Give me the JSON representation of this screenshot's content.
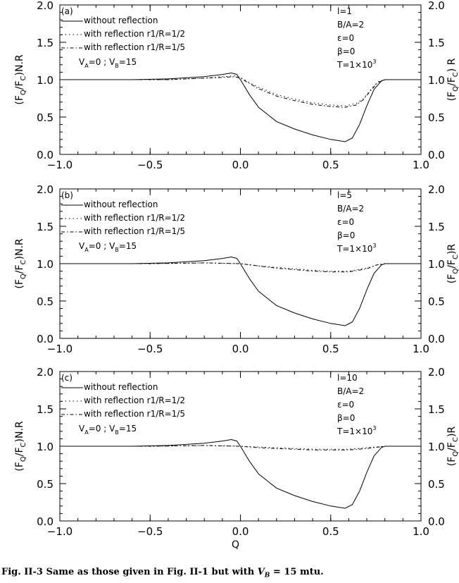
{
  "colors": {
    "line": "#000000",
    "background": "#ffffff"
  },
  "chart_data": [
    {
      "type": "line",
      "panel_label": "(a)",
      "left_ylabel": "(F_Q/F_C)N.R",
      "right_ylabel": "(F_Q/F_C) R",
      "xlabel": "",
      "xlim": [
        -1.0,
        1.0
      ],
      "ylim": [
        0.0,
        2.0
      ],
      "xticks": [
        "−1.0",
        "−0.5",
        "0.0",
        "0.5",
        "1.0"
      ],
      "yticks": [
        "0.0",
        "0.5",
        "1.0",
        "1.5",
        "2.0"
      ],
      "legend": [
        "without reflection",
        "with reflection r1/R=1/2",
        "with reflection r1/R=1/5"
      ],
      "annotation": "V_A=0 ; V_B=15",
      "params": [
        "l=1",
        "B/A=2",
        "ε=0",
        "β=0",
        "T=1×10^3"
      ],
      "series": [
        {
          "name": "without reflection",
          "style": "solid",
          "x": [
            -1.0,
            -0.6,
            -0.4,
            -0.2,
            -0.1,
            -0.05,
            -0.02,
            0.0,
            0.05,
            0.1,
            0.2,
            0.3,
            0.4,
            0.5,
            0.58,
            0.62,
            0.66,
            0.7,
            0.74,
            0.78,
            0.8,
            1.0
          ],
          "y": [
            1.0,
            1.0,
            1.01,
            1.04,
            1.07,
            1.09,
            1.07,
            1.0,
            0.8,
            0.63,
            0.44,
            0.34,
            0.26,
            0.2,
            0.17,
            0.22,
            0.4,
            0.65,
            0.87,
            0.98,
            1.0,
            1.0
          ]
        },
        {
          "name": "with reflection r1/R=1/2",
          "style": "dotted",
          "x": [
            -1.0,
            -0.6,
            -0.4,
            -0.2,
            -0.1,
            -0.03,
            0.0,
            0.05,
            0.1,
            0.2,
            0.3,
            0.4,
            0.5,
            0.58,
            0.64,
            0.68,
            0.72,
            0.76,
            0.8,
            1.0
          ],
          "y": [
            1.0,
            1.0,
            1.0,
            1.02,
            1.04,
            1.05,
            1.03,
            0.96,
            0.9,
            0.8,
            0.74,
            0.69,
            0.66,
            0.65,
            0.68,
            0.74,
            0.86,
            0.97,
            1.0,
            1.0
          ]
        },
        {
          "name": "with reflection r1/R=1/5",
          "style": "dashed",
          "x": [
            -1.0,
            -0.6,
            -0.4,
            -0.2,
            -0.1,
            -0.03,
            0.0,
            0.05,
            0.1,
            0.2,
            0.3,
            0.4,
            0.5,
            0.58,
            0.64,
            0.68,
            0.72,
            0.76,
            0.8,
            1.0
          ],
          "y": [
            1.0,
            1.0,
            1.0,
            1.02,
            1.03,
            1.04,
            1.02,
            0.95,
            0.88,
            0.78,
            0.72,
            0.67,
            0.64,
            0.63,
            0.66,
            0.73,
            0.85,
            0.96,
            1.0,
            1.0
          ]
        }
      ]
    },
    {
      "type": "line",
      "panel_label": "(b)",
      "left_ylabel": "(F_Q/F_C)N.R",
      "right_ylabel": "(F_Q/F_C)R",
      "xlabel": "",
      "xlim": [
        -1.0,
        1.0
      ],
      "ylim": [
        0.0,
        2.0
      ],
      "xticks": [
        "−1.0",
        "−0.5",
        "0.0",
        "0.5",
        "1.0"
      ],
      "yticks": [
        "0.0",
        "0.5",
        "1.0",
        "1.5",
        "2.0"
      ],
      "legend": [
        "without reflection",
        "with reflection r1/R=1/2",
        "with reflection r1/R=1/5"
      ],
      "annotation": "V_A=0 ; V_B=15",
      "params": [
        "l=5",
        "B/A=2",
        "ε=0",
        "β=0",
        "T=1×10^3"
      ],
      "series": [
        {
          "name": "without reflection",
          "style": "solid",
          "x": [
            -1.0,
            -0.6,
            -0.4,
            -0.2,
            -0.1,
            -0.05,
            -0.02,
            0.0,
            0.05,
            0.1,
            0.2,
            0.3,
            0.4,
            0.5,
            0.58,
            0.62,
            0.66,
            0.7,
            0.74,
            0.78,
            0.8,
            1.0
          ],
          "y": [
            1.0,
            1.0,
            1.01,
            1.04,
            1.07,
            1.09,
            1.07,
            1.0,
            0.8,
            0.63,
            0.44,
            0.34,
            0.26,
            0.2,
            0.17,
            0.22,
            0.4,
            0.65,
            0.87,
            0.98,
            1.0,
            1.0
          ]
        },
        {
          "name": "with reflection r1/R=1/2",
          "style": "dotted",
          "x": [
            -1.0,
            -0.5,
            -0.2,
            0.0,
            0.1,
            0.2,
            0.3,
            0.4,
            0.5,
            0.6,
            0.7,
            0.75,
            0.8,
            1.0
          ],
          "y": [
            1.0,
            1.0,
            1.01,
            1.0,
            0.97,
            0.95,
            0.93,
            0.91,
            0.9,
            0.9,
            0.94,
            0.98,
            1.0,
            1.0
          ]
        },
        {
          "name": "with reflection r1/R=1/5",
          "style": "dashed",
          "x": [
            -1.0,
            -0.5,
            -0.2,
            0.0,
            0.1,
            0.2,
            0.3,
            0.4,
            0.5,
            0.6,
            0.7,
            0.75,
            0.8,
            1.0
          ],
          "y": [
            1.0,
            1.0,
            1.01,
            1.0,
            0.97,
            0.94,
            0.92,
            0.9,
            0.89,
            0.89,
            0.93,
            0.98,
            1.0,
            1.0
          ]
        }
      ]
    },
    {
      "type": "line",
      "panel_label": "(c)",
      "left_ylabel": "(F_Q/F_C)N.R",
      "right_ylabel": "(F_Q/F_C)R",
      "xlabel": "Q",
      "xlim": [
        -1.0,
        1.0
      ],
      "ylim": [
        0.0,
        2.0
      ],
      "xticks": [
        "−1.0",
        "−0.5",
        "0.0",
        "0.5",
        "1.0"
      ],
      "yticks": [
        "0.0",
        "0.5",
        "1.0",
        "1.5",
        "2.0"
      ],
      "legend": [
        "without reflection",
        "with reflection r1/R=1/2",
        "with reflection r1/R=1/5"
      ],
      "annotation": "V_A=0 ; V_B=15",
      "params": [
        "l=10",
        "B/A=2",
        "ε=0",
        "β=0",
        "T=1×10^3"
      ],
      "series": [
        {
          "name": "without reflection",
          "style": "solid",
          "x": [
            -1.0,
            -0.6,
            -0.4,
            -0.2,
            -0.1,
            -0.05,
            -0.02,
            0.0,
            0.05,
            0.1,
            0.2,
            0.3,
            0.4,
            0.5,
            0.58,
            0.62,
            0.66,
            0.7,
            0.74,
            0.78,
            0.8,
            1.0
          ],
          "y": [
            1.0,
            1.0,
            1.01,
            1.04,
            1.07,
            1.09,
            1.07,
            1.0,
            0.8,
            0.63,
            0.44,
            0.34,
            0.26,
            0.2,
            0.17,
            0.22,
            0.4,
            0.65,
            0.87,
            0.98,
            1.0,
            1.0
          ]
        },
        {
          "name": "with reflection r1/R=1/2",
          "style": "dotted",
          "x": [
            -1.0,
            -0.5,
            -0.2,
            0.0,
            0.1,
            0.2,
            0.3,
            0.4,
            0.5,
            0.6,
            0.7,
            0.8,
            1.0
          ],
          "y": [
            1.0,
            1.0,
            1.01,
            1.0,
            0.99,
            0.98,
            0.97,
            0.96,
            0.96,
            0.96,
            0.98,
            1.0,
            1.0
          ]
        },
        {
          "name": "with reflection r1/R=1/5",
          "style": "dashed",
          "x": [
            -1.0,
            -0.5,
            -0.2,
            0.0,
            0.1,
            0.2,
            0.3,
            0.4,
            0.5,
            0.6,
            0.7,
            0.8,
            1.0
          ],
          "y": [
            1.0,
            1.0,
            1.01,
            1.0,
            0.98,
            0.97,
            0.96,
            0.95,
            0.95,
            0.95,
            0.97,
            1.0,
            1.0
          ]
        }
      ]
    }
  ],
  "caption": {
    "prefix": "Fig. II-3 Same as those given in Fig. II-1 but with ",
    "math": "V",
    "math_sub": "B",
    "suffix": " = 15 mtu."
  }
}
